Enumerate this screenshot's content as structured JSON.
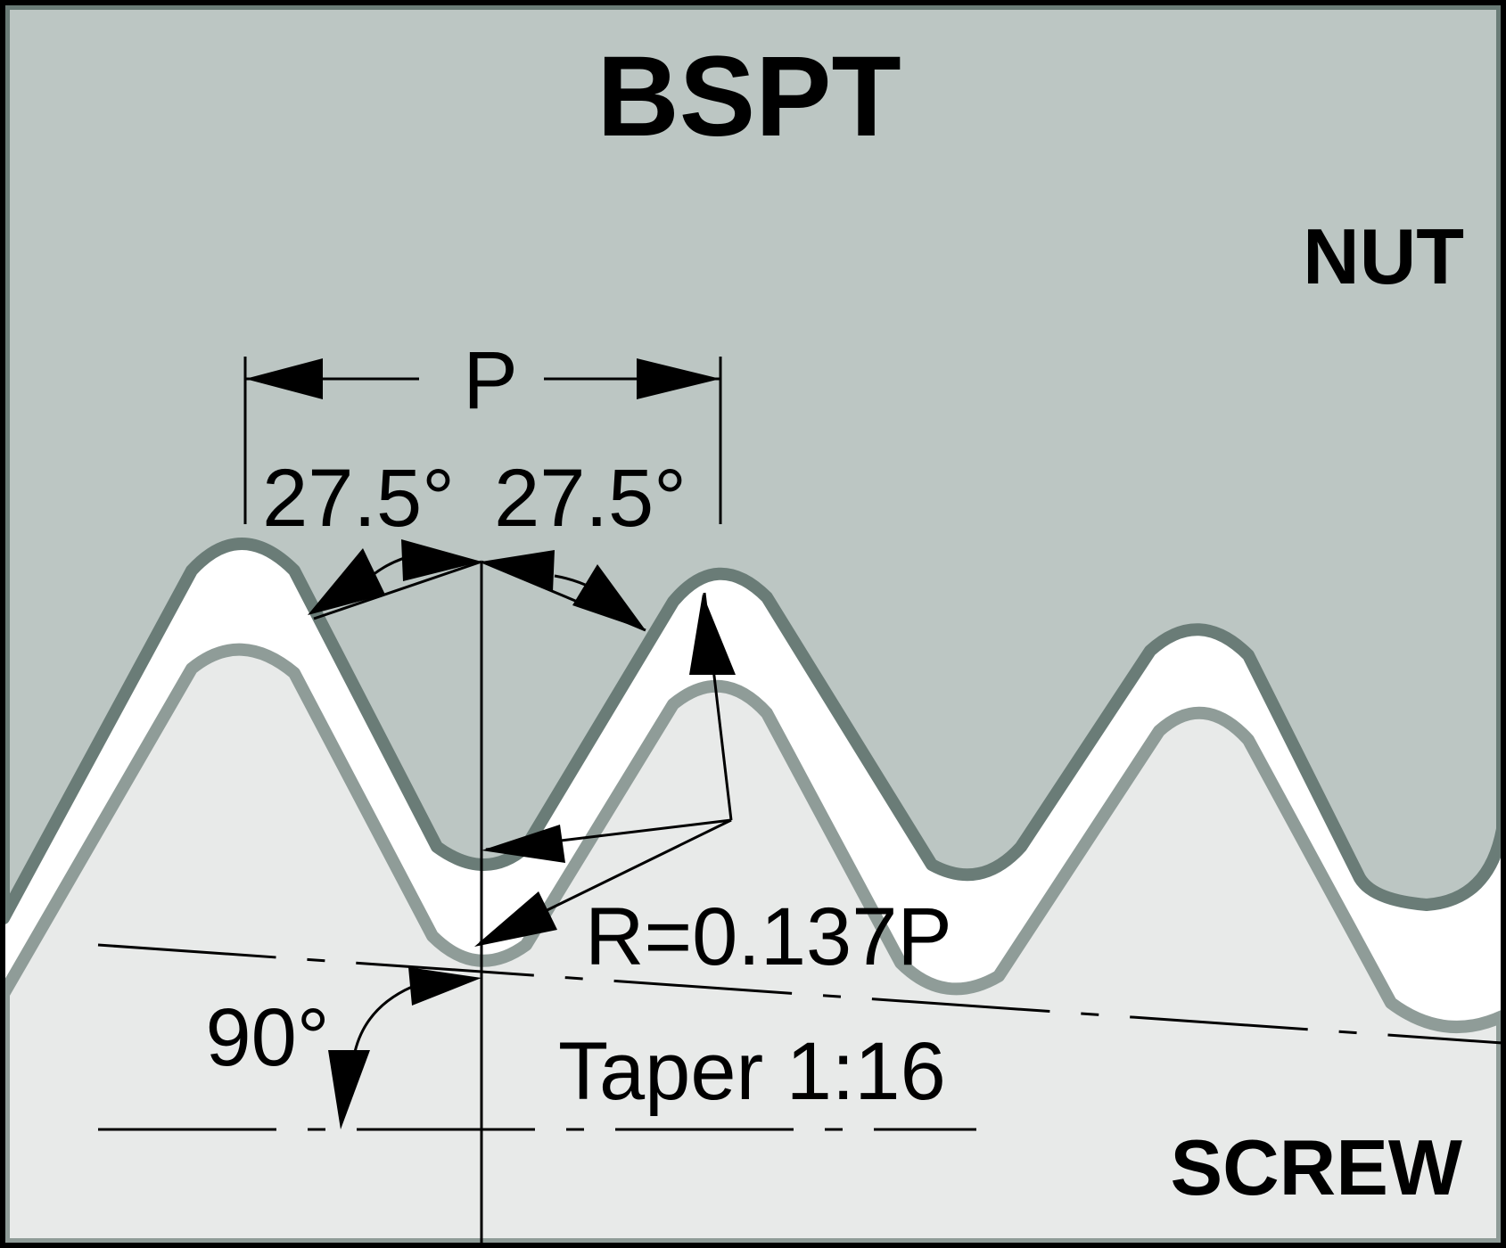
{
  "title": "BSPT",
  "nut_label": "NUT",
  "screw_label": "SCREW",
  "dimensions": {
    "pitch": "P",
    "flank_angle_left": "27.5°",
    "flank_angle_right": "27.5°",
    "radius": "R=0.137P",
    "right_angle": "90°",
    "taper": "Taper 1:16"
  },
  "colors": {
    "nut_fill": "#bcc6c3",
    "nut_edge": "#6a7c77",
    "screw_fill": "#e8eae9",
    "screw_edge": "#8f9c98",
    "gap": "#ffffff",
    "frame": "#000000"
  }
}
